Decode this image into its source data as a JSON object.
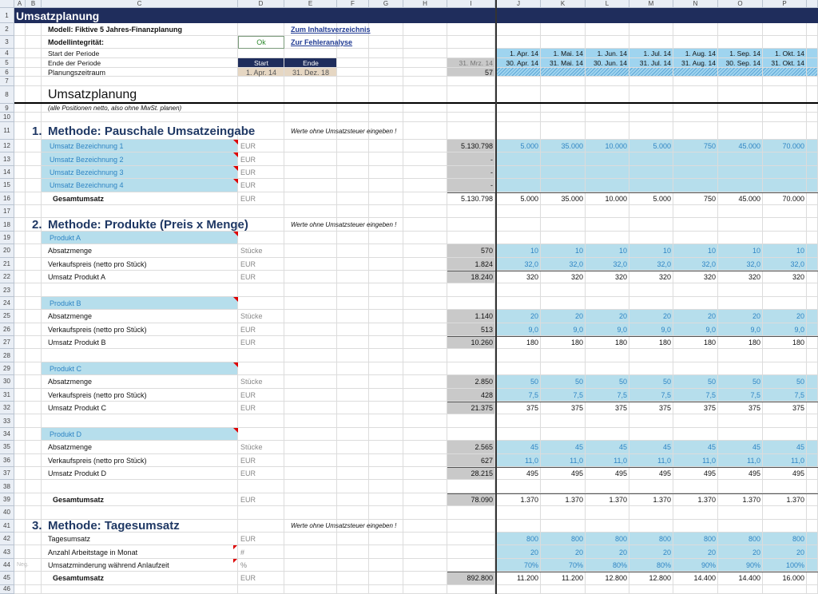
{
  "columns": [
    "A",
    "B",
    "C",
    "D",
    "E",
    "F",
    "G",
    "H",
    "I",
    "J",
    "K",
    "L",
    "M",
    "N",
    "O",
    "P"
  ],
  "rows": [
    {
      "number": 1,
      "cells": {
        "A": "Umsatzplanung"
      }
    },
    {
      "number": 2,
      "cells": {
        "C": "Modell: Fiktive 5 Jahres-Finanzplanung",
        "E": "Zum Inhaltsverzeichnis"
      }
    },
    {
      "number": 3,
      "cells": {
        "C": "Modellintegrität:",
        "D": "Ok",
        "E": "Zur Fehleranalyse"
      }
    },
    {
      "number": 4,
      "cells": {
        "C": "Start der Periode",
        "J": "1. Apr. 14",
        "K": "1. Mai. 14",
        "L": "1. Jun. 14",
        "M": "1. Jul. 14",
        "N": "1. Aug. 14",
        "O": "1. Sep. 14",
        "P": "1. Okt. 14"
      }
    },
    {
      "number": 5,
      "cells": {
        "C": "Ende der Periode",
        "D": "Start",
        "E": "Ende",
        "I": "31. Mrz. 14",
        "J": "30. Apr. 14",
        "K": "31. Mai. 14",
        "L": "30. Jun. 14",
        "M": "31. Jul. 14",
        "N": "31. Aug. 14",
        "O": "30. Sep. 14",
        "P": "31. Okt. 14"
      }
    },
    {
      "number": 6,
      "cells": {
        "C": "Planungszeitraum",
        "D": "1. Apr. 14",
        "E": "31. Dez. 18",
        "I": "57"
      }
    },
    {
      "number": 7
    },
    {
      "number": 8,
      "cells": {
        "C": "Umsatzplanung"
      }
    },
    {
      "number": 9,
      "cells": {
        "C": "(alle Positionen netto, also ohne MwSt. planen)"
      }
    },
    {
      "number": 10
    },
    {
      "number": 11,
      "cells": {
        "B": "1.",
        "C": "Methode: Pauschale Umsatzeingabe",
        "E": "Werte ohne Umsatzsteuer eingeben !"
      }
    },
    {
      "number": 12,
      "cells": {
        "C": "Umsatz Bezeichnung 1",
        "D": "EUR",
        "I": "5.130.798",
        "J": "5.000",
        "K": "35.000",
        "L": "10.000",
        "M": "5.000",
        "N": "750",
        "O": "45.000",
        "P": "70.000"
      }
    },
    {
      "number": 13,
      "cells": {
        "C": "Umsatz Bezeichnung 2",
        "D": "EUR",
        "I": "-"
      }
    },
    {
      "number": 14,
      "cells": {
        "C": "Umsatz Bezeichnung 3",
        "D": "EUR",
        "I": "-"
      }
    },
    {
      "number": 15,
      "cells": {
        "C": "Umsatz Bezeichnung 4",
        "D": "EUR",
        "I": "-"
      }
    },
    {
      "number": 16,
      "cells": {
        "C": "Gesamtumsatz",
        "D": "EUR",
        "I": "5.130.798",
        "J": "5.000",
        "K": "35.000",
        "L": "10.000",
        "M": "5.000",
        "N": "750",
        "O": "45.000",
        "P": "70.000"
      }
    },
    {
      "number": 17
    },
    {
      "number": 18,
      "cells": {
        "B": "2.",
        "C": "Methode: Produkte (Preis x Menge)",
        "E": "Werte ohne Umsatzsteuer eingeben !"
      }
    },
    {
      "number": 19,
      "cells": {
        "C": "Produkt A"
      }
    },
    {
      "number": 20,
      "cells": {
        "C": "Absatzmenge",
        "D": "Stücke",
        "I": "570",
        "J": "10",
        "K": "10",
        "L": "10",
        "M": "10",
        "N": "10",
        "O": "10",
        "P": "10"
      }
    },
    {
      "number": 21,
      "cells": {
        "C": "Verkaufspreis (netto pro Stück)",
        "D": "EUR",
        "I": "1.824",
        "J": "32,0",
        "K": "32,0",
        "L": "32,0",
        "M": "32,0",
        "N": "32,0",
        "O": "32,0",
        "P": "32,0"
      }
    },
    {
      "number": 22,
      "cells": {
        "C": "Umsatz Produkt A",
        "D": "EUR",
        "I": "18.240",
        "J": "320",
        "K": "320",
        "L": "320",
        "M": "320",
        "N": "320",
        "O": "320",
        "P": "320"
      }
    },
    {
      "number": 23
    },
    {
      "number": 24,
      "cells": {
        "C": "Produkt B"
      }
    },
    {
      "number": 25,
      "cells": {
        "C": "Absatzmenge",
        "D": "Stücke",
        "I": "1.140",
        "J": "20",
        "K": "20",
        "L": "20",
        "M": "20",
        "N": "20",
        "O": "20",
        "P": "20"
      }
    },
    {
      "number": 26,
      "cells": {
        "C": "Verkaufspreis (netto pro Stück)",
        "D": "EUR",
        "I": "513",
        "J": "9,0",
        "K": "9,0",
        "L": "9,0",
        "M": "9,0",
        "N": "9,0",
        "O": "9,0",
        "P": "9,0"
      }
    },
    {
      "number": 27,
      "cells": {
        "C": "Umsatz Produkt B",
        "D": "EUR",
        "I": "10.260",
        "J": "180",
        "K": "180",
        "L": "180",
        "M": "180",
        "N": "180",
        "O": "180",
        "P": "180"
      }
    },
    {
      "number": 28
    },
    {
      "number": 29,
      "cells": {
        "C": "Produkt C"
      }
    },
    {
      "number": 30,
      "cells": {
        "C": "Absatzmenge",
        "D": "Stücke",
        "I": "2.850",
        "J": "50",
        "K": "50",
        "L": "50",
        "M": "50",
        "N": "50",
        "O": "50",
        "P": "50"
      }
    },
    {
      "number": 31,
      "cells": {
        "C": "Verkaufspreis (netto pro Stück)",
        "D": "EUR",
        "I": "428",
        "J": "7,5",
        "K": "7,5",
        "L": "7,5",
        "M": "7,5",
        "N": "7,5",
        "O": "7,5",
        "P": "7,5"
      }
    },
    {
      "number": 32,
      "cells": {
        "C": "Umsatz Produkt C",
        "D": "EUR",
        "I": "21.375",
        "J": "375",
        "K": "375",
        "L": "375",
        "M": "375",
        "N": "375",
        "O": "375",
        "P": "375"
      }
    },
    {
      "number": 33
    },
    {
      "number": 34,
      "cells": {
        "C": "Produkt D"
      }
    },
    {
      "number": 35,
      "cells": {
        "C": "Absatzmenge",
        "D": "Stücke",
        "I": "2.565",
        "J": "45",
        "K": "45",
        "L": "45",
        "M": "45",
        "N": "45",
        "O": "45",
        "P": "45"
      }
    },
    {
      "number": 36,
      "cells": {
        "C": "Verkaufspreis (netto pro Stück)",
        "D": "EUR",
        "I": "627",
        "J": "11,0",
        "K": "11,0",
        "L": "11,0",
        "M": "11,0",
        "N": "11,0",
        "O": "11,0",
        "P": "11,0"
      }
    },
    {
      "number": 37,
      "cells": {
        "C": "Umsatz Produkt D",
        "D": "EUR",
        "I": "28.215",
        "J": "495",
        "K": "495",
        "L": "495",
        "M": "495",
        "N": "495",
        "O": "495",
        "P": "495"
      }
    },
    {
      "number": 38
    },
    {
      "number": 39,
      "cells": {
        "C": "Gesamtumsatz",
        "D": "EUR",
        "I": "78.090",
        "J": "1.370",
        "K": "1.370",
        "L": "1.370",
        "M": "1.370",
        "N": "1.370",
        "O": "1.370",
        "P": "1.370"
      }
    },
    {
      "number": 40
    },
    {
      "number": 41,
      "cells": {
        "B": "3.",
        "C": "Methode: Tagesumsatz",
        "E": "Werte ohne Umsatzsteuer eingeben !"
      }
    },
    {
      "number": 42,
      "cells": {
        "C": "Tagesumsatz",
        "D": "EUR",
        "J": "800",
        "K": "800",
        "L": "800",
        "M": "800",
        "N": "800",
        "O": "800",
        "P": "800"
      }
    },
    {
      "number": 43,
      "cells": {
        "C": "Anzahl Arbeitstage in Monat",
        "D": "#",
        "J": "20",
        "K": "20",
        "L": "20",
        "M": "20",
        "N": "20",
        "O": "20",
        "P": "20"
      }
    },
    {
      "number": 44,
      "cells": {
        "A": "Neg.",
        "C": "Umsatzminderung während Anlaufzeit",
        "D": "%",
        "J": "70%",
        "K": "70%",
        "L": "80%",
        "M": "80%",
        "N": "90%",
        "O": "90%",
        "P": "100%"
      }
    },
    {
      "number": 45,
      "cells": {
        "C": "Gesamtumsatz",
        "D": "EUR",
        "I": "892.800",
        "J": "11.200",
        "K": "11.200",
        "L": "12.800",
        "M": "12.800",
        "N": "14.400",
        "O": "14.400",
        "P": "16.000"
      }
    },
    {
      "number": 46
    }
  ]
}
